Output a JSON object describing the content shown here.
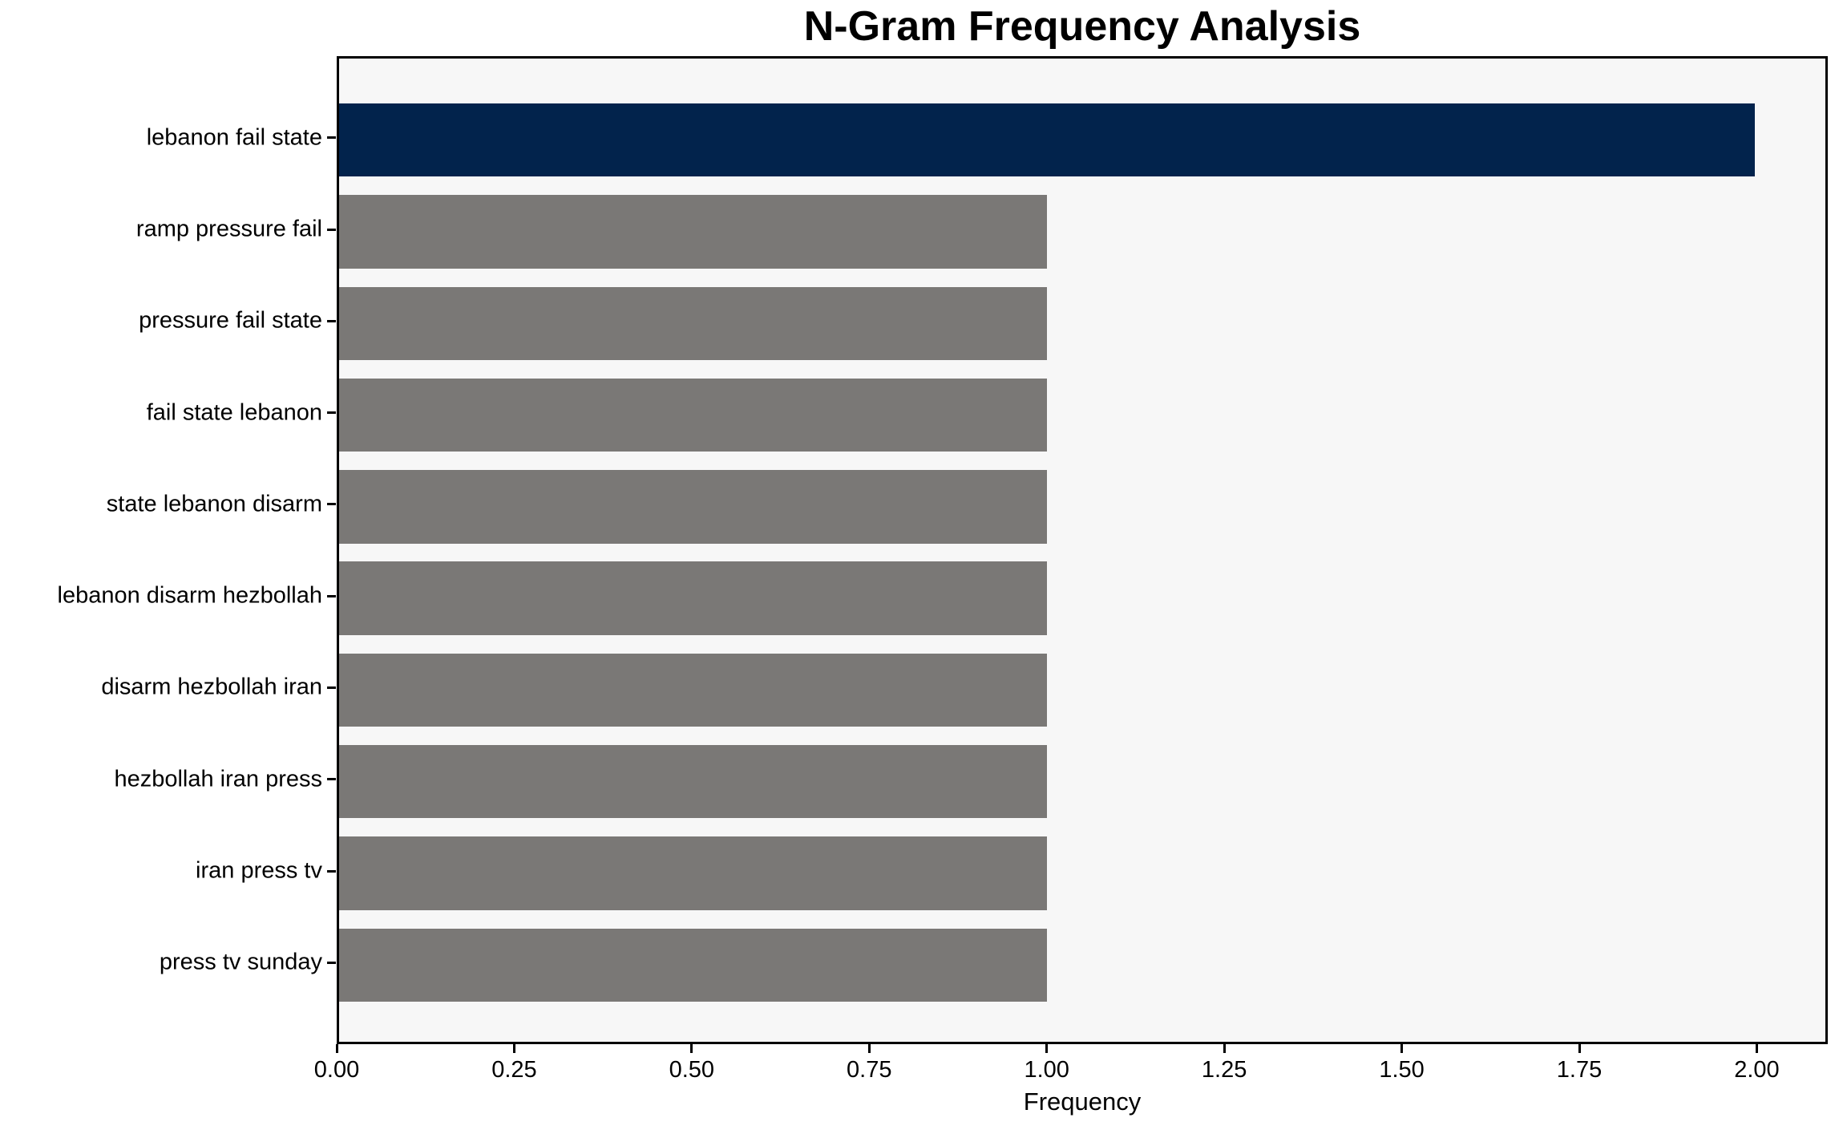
{
  "chart_data": {
    "type": "bar",
    "orientation": "horizontal",
    "title": "N-Gram Frequency Analysis",
    "xlabel": "Frequency",
    "ylabel": "",
    "categories": [
      "lebanon fail state",
      "ramp pressure fail",
      "pressure fail state",
      "fail state lebanon",
      "state lebanon disarm",
      "lebanon disarm hezbollah",
      "disarm hezbollah iran",
      "hezbollah iran press",
      "iran press tv",
      "press tv sunday"
    ],
    "values": [
      2,
      1,
      1,
      1,
      1,
      1,
      1,
      1,
      1,
      1
    ],
    "highlight_index": 0,
    "xlim": [
      0,
      2.1
    ],
    "xticks": [
      0.0,
      0.25,
      0.5,
      0.75,
      1.0,
      1.25,
      1.5,
      1.75,
      2.0
    ],
    "xtick_labels": [
      "0.00",
      "0.25",
      "0.50",
      "0.75",
      "1.00",
      "1.25",
      "1.50",
      "1.75",
      "2.00"
    ],
    "grid": false,
    "legend": null,
    "colors": {
      "highlight_bar": "#02234C",
      "default_bar": "#7A7876",
      "plot_background": "#F7F7F7",
      "figure_background": "#FFFFFF",
      "axis": "#000000",
      "text": "#000000"
    }
  }
}
